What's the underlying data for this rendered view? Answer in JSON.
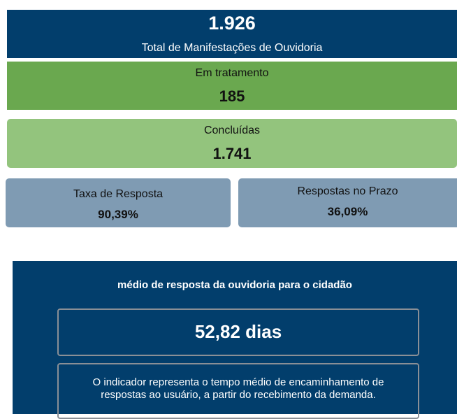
{
  "total": {
    "value": "1.926",
    "label": "Total de Manifestações de Ouvidoria"
  },
  "em_tratamento": {
    "label": "Em tratamento",
    "value": "185"
  },
  "concluidas": {
    "label": "Concluídas",
    "value": "1.741"
  },
  "taxa_resposta": {
    "label": "Taxa de Resposta",
    "value": "90,39%"
  },
  "respostas_prazo": {
    "label": "Respostas no Prazo",
    "value": "36,09%"
  },
  "tempo_medio": {
    "title": "médio de resposta da ouvidoria para o cidadão",
    "value": "52,82 dias",
    "description": [
      "O indicador representa o tempo médio de encaminhamento de",
      "respostas ao usuário, a partir do recebimento da demanda."
    ]
  }
}
